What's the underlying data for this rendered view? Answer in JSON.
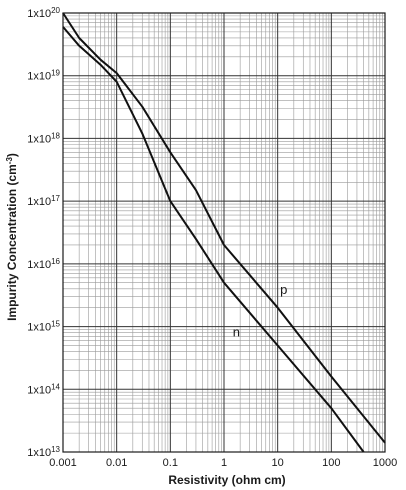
{
  "chart_data": {
    "type": "line",
    "title": "",
    "xlabel": "Resistivity (ohm cm)",
    "ylabel_main": "Impurity Concentration (cm",
    "ylabel_sup": "-3",
    "ylabel_close": ")",
    "x_scale": "log",
    "y_scale": "log",
    "xlim": [
      0.001,
      1000
    ],
    "ylim": [
      10000000000000.0,
      1e+20
    ],
    "grid": true,
    "x_ticks": [
      {
        "value": 0.001,
        "label": "0.001"
      },
      {
        "value": 0.01,
        "label": "0.01"
      },
      {
        "value": 0.1,
        "label": "0.1"
      },
      {
        "value": 1,
        "label": "1"
      },
      {
        "value": 10,
        "label": "10"
      },
      {
        "value": 100,
        "label": "100"
      },
      {
        "value": 1000,
        "label": "1000"
      }
    ],
    "y_ticks": [
      {
        "value": 10000000000000.0,
        "base": "1x10",
        "exp": "13"
      },
      {
        "value": 100000000000000.0,
        "base": "1x10",
        "exp": "14"
      },
      {
        "value": 1000000000000000.0,
        "base": "1x10",
        "exp": "15"
      },
      {
        "value": 1e+16,
        "base": "1x10",
        "exp": "16"
      },
      {
        "value": 1e+17,
        "base": "1x10",
        "exp": "17"
      },
      {
        "value": 1e+18,
        "base": "1x10",
        "exp": "18"
      },
      {
        "value": 1e+19,
        "base": "1x10",
        "exp": "19"
      },
      {
        "value": 1e+20,
        "base": "1x10",
        "exp": "20"
      }
    ],
    "series": [
      {
        "name": "p",
        "label_at": {
          "x": 13,
          "y": 3300000000000000.0
        },
        "points": [
          [
            0.001,
            1e+20
          ],
          [
            0.002,
            4e+19
          ],
          [
            0.005,
            1.8e+19
          ],
          [
            0.01,
            1.1e+19
          ],
          [
            0.03,
            3.2e+18
          ],
          [
            0.1,
            6e+17
          ],
          [
            0.3,
            1.5e+17
          ],
          [
            1,
            2e+16
          ],
          [
            10,
            2000000000000000.0
          ],
          [
            100,
            160000000000000.0
          ],
          [
            1000,
            14000000000000.0
          ]
        ]
      },
      {
        "name": "n",
        "label_at": {
          "x": 1.7,
          "y": 700000000000000.0
        },
        "points": [
          [
            0.001,
            6e+19
          ],
          [
            0.002,
            3e+19
          ],
          [
            0.005,
            1.5e+19
          ],
          [
            0.01,
            8e+18
          ],
          [
            0.03,
            1.2e+18
          ],
          [
            0.1,
            1e+17
          ],
          [
            0.3,
            2.5e+16
          ],
          [
            1,
            5000000000000000.0
          ],
          [
            10,
            500000000000000.0
          ],
          [
            100,
            50000000000000.0
          ],
          [
            400,
            10000000000000.0
          ]
        ]
      }
    ]
  }
}
